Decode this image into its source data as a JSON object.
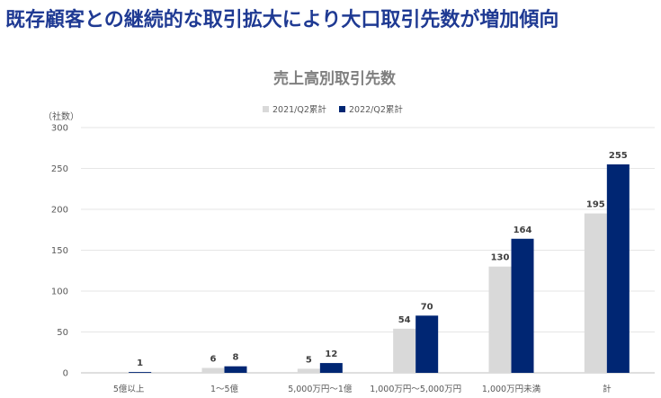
{
  "headline": "既存顧客との継続的な取引拡大により大口取引先数が増加傾向",
  "colors": {
    "headline": "#1f3a93",
    "series_2021": "#d9d9d9",
    "series_2022": "#002673",
    "grid": "#e6e6e6"
  },
  "chart_data": {
    "type": "bar",
    "title": "売上高別取引先数",
    "ylabel": "（社数）",
    "xlabel": "",
    "ylim": [
      0,
      300
    ],
    "yticks": [
      0,
      50,
      100,
      150,
      200,
      250,
      300
    ],
    "grid": true,
    "legend": "top-center",
    "categories": [
      "5億以上",
      "1〜5億",
      "5,000万円〜1億",
      "1,000万円〜5,000万円",
      "1,000万円未満",
      "計"
    ],
    "series": [
      {
        "name": "2021/Q2累計",
        "values": [
          0,
          6,
          5,
          54,
          130,
          195
        ],
        "labels": [
          "",
          "6",
          "5",
          "54",
          "130",
          "195"
        ]
      },
      {
        "name": "2022/Q2累計",
        "values": [
          1,
          8,
          12,
          70,
          164,
          255
        ],
        "labels": [
          "1",
          "8",
          "12",
          "70",
          "164",
          "255"
        ]
      }
    ]
  }
}
